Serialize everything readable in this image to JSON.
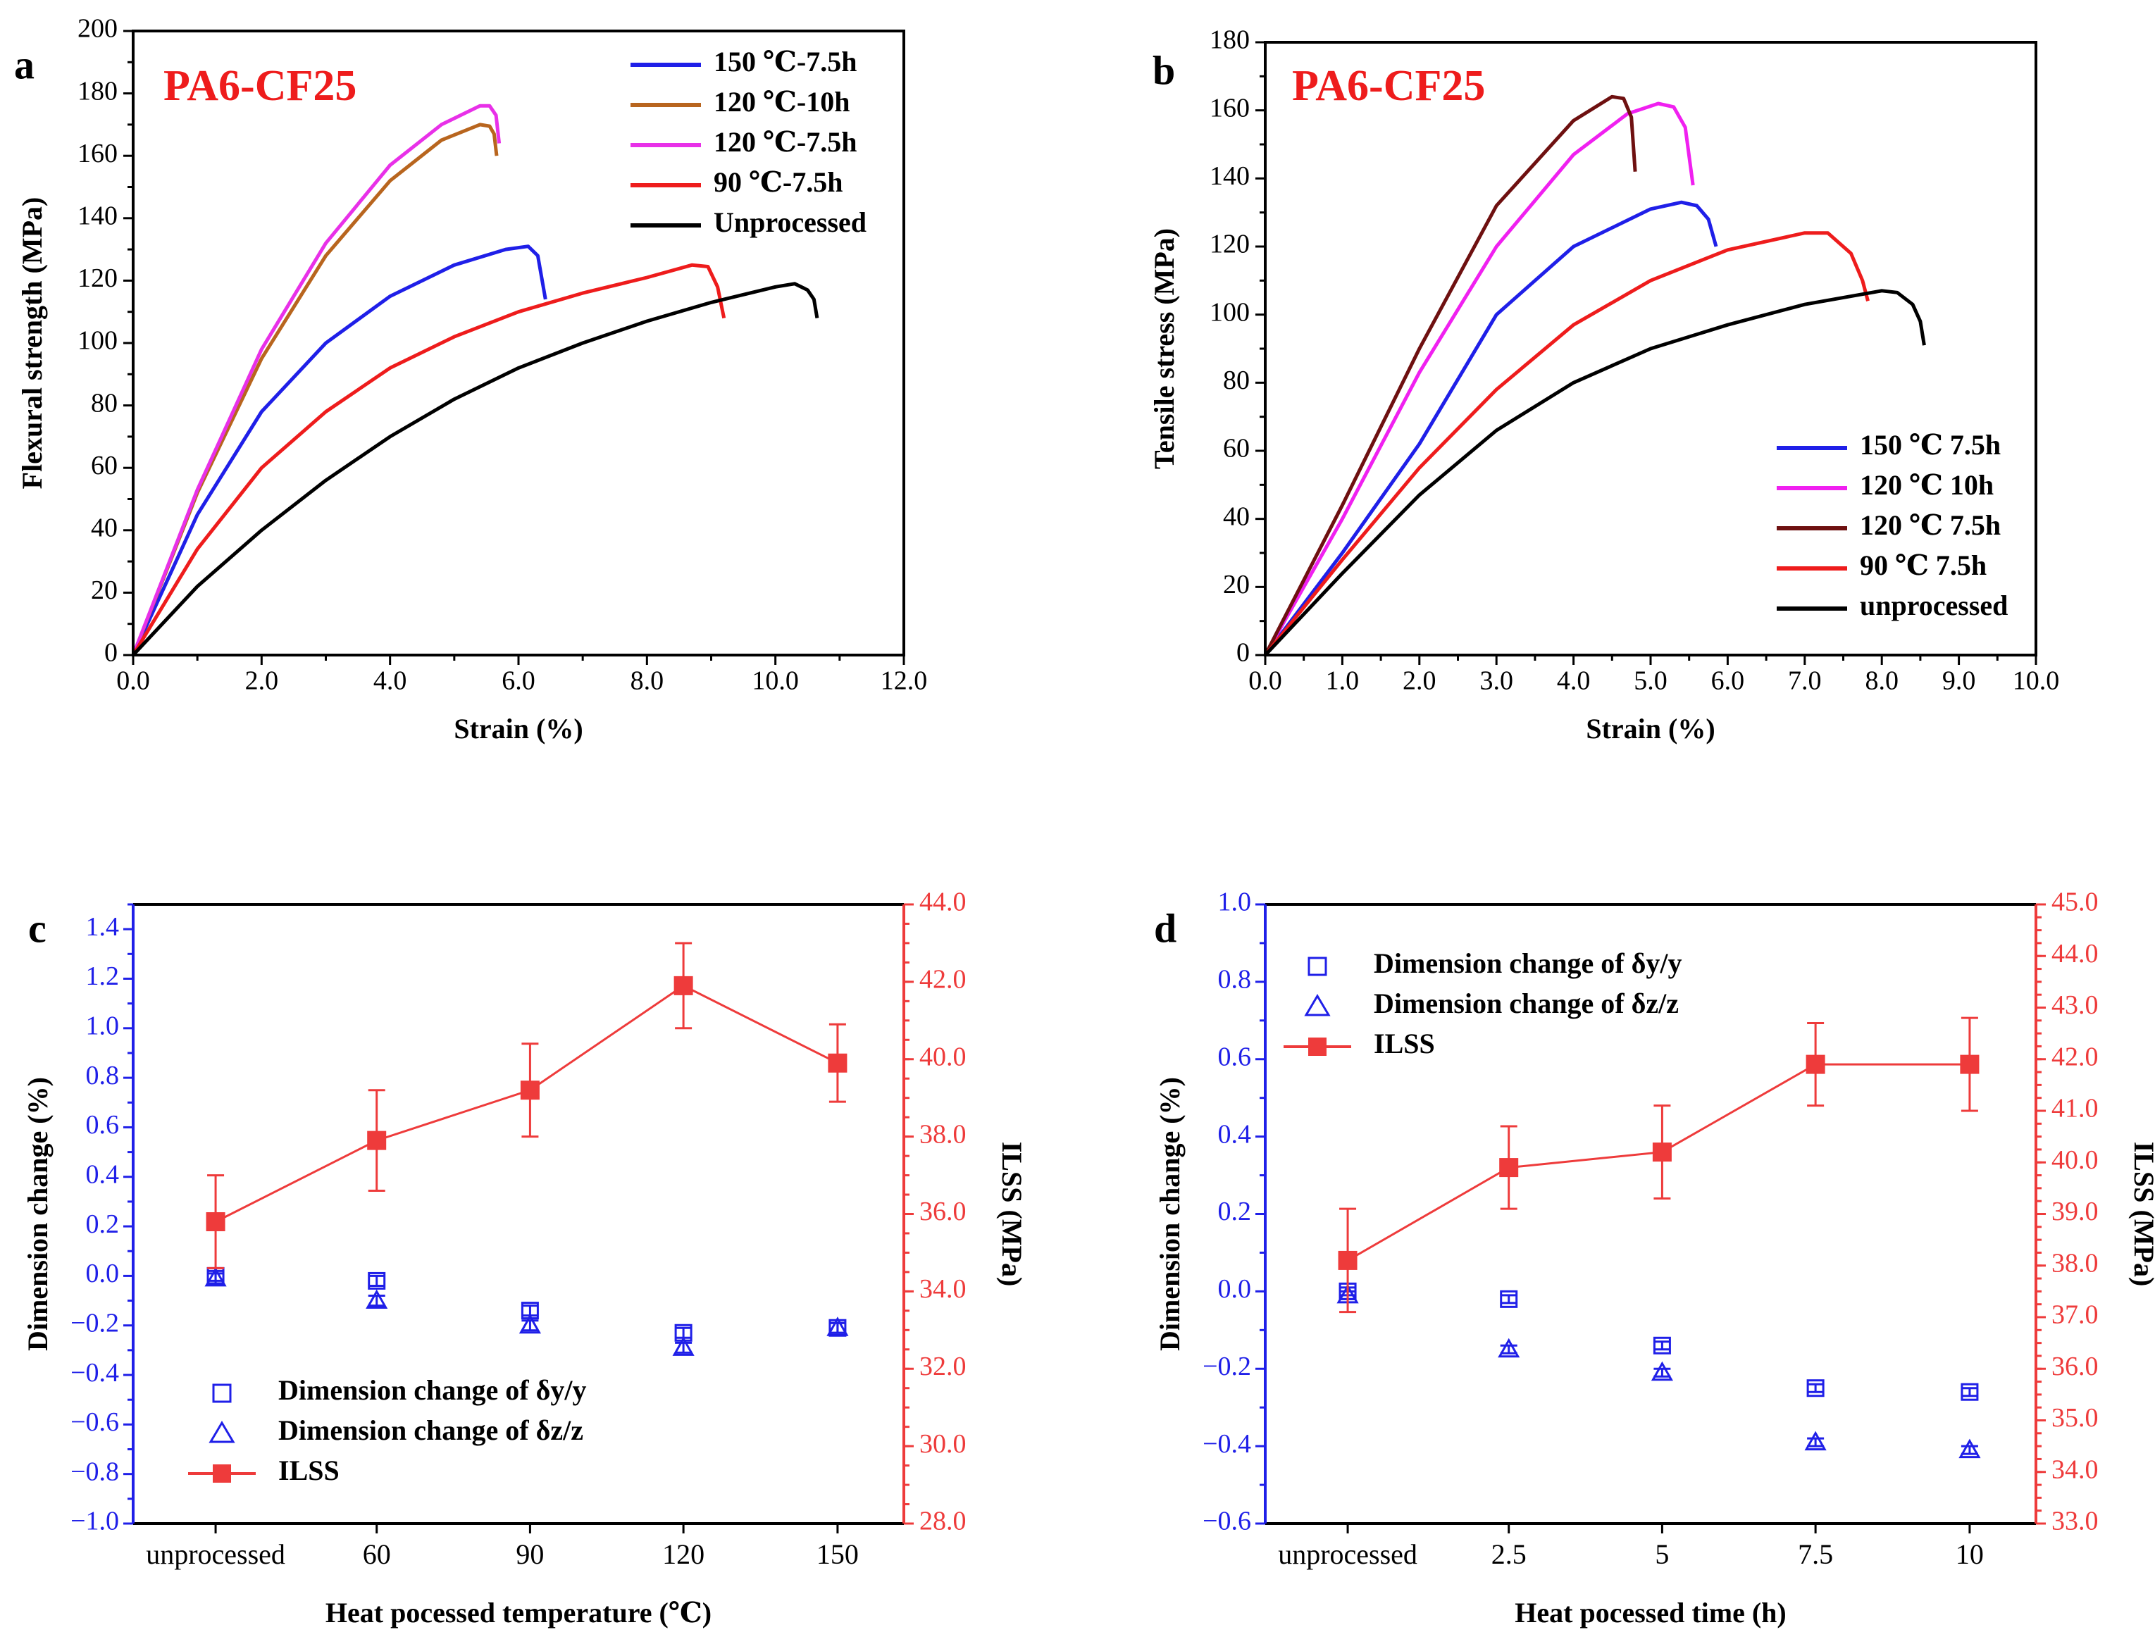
{
  "chart_data": [
    {
      "panel": "a",
      "type": "line",
      "title": "PA6-CF25",
      "xlabel": "Strain (%)",
      "ylabel": "Flexural strength (MPa)",
      "xlim": [
        0,
        12
      ],
      "ylim": [
        0,
        200
      ],
      "xticks": [
        "0.0",
        "2.0",
        "4.0",
        "6.0",
        "8.0",
        "10.0",
        "12.0"
      ],
      "yticks": [
        "0",
        "20",
        "40",
        "60",
        "80",
        "100",
        "120",
        "140",
        "160",
        "180",
        "200"
      ],
      "legend_position": "top-right",
      "series": [
        {
          "name": "150 ℃-7.5h",
          "color": "#1f1fe8",
          "points": [
            [
              0,
              0
            ],
            [
              1,
              45
            ],
            [
              2,
              78
            ],
            [
              3,
              100
            ],
            [
              4,
              115
            ],
            [
              5,
              125
            ],
            [
              5.8,
              130
            ],
            [
              6.15,
              131
            ],
            [
              6.3,
              128
            ],
            [
              6.42,
              114
            ]
          ]
        },
        {
          "name": "120 ℃-10h",
          "color": "#b8651e",
          "points": [
            [
              0,
              0
            ],
            [
              1,
              52
            ],
            [
              2,
              95
            ],
            [
              3,
              128
            ],
            [
              4,
              152
            ],
            [
              4.8,
              165
            ],
            [
              5.4,
              170
            ],
            [
              5.55,
              169.5
            ],
            [
              5.62,
              167
            ],
            [
              5.66,
              160
            ]
          ]
        },
        {
          "name": "120 ℃-7.5h",
          "color": "#e830e8",
          "points": [
            [
              0,
              0
            ],
            [
              1,
              53
            ],
            [
              2,
              98
            ],
            [
              3,
              132
            ],
            [
              4,
              157
            ],
            [
              4.8,
              170
            ],
            [
              5.4,
              176
            ],
            [
              5.55,
              176
            ],
            [
              5.65,
              173
            ],
            [
              5.7,
              164
            ]
          ]
        },
        {
          "name": "90 ℃-7.5h",
          "color": "#ee1c1c",
          "points": [
            [
              0,
              0
            ],
            [
              1,
              34
            ],
            [
              2,
              60
            ],
            [
              3,
              78
            ],
            [
              4,
              92
            ],
            [
              5,
              102
            ],
            [
              6,
              110
            ],
            [
              7,
              116
            ],
            [
              8,
              121
            ],
            [
              8.7,
              125
            ],
            [
              8.95,
              124.5
            ],
            [
              9.1,
              118
            ],
            [
              9.2,
              108
            ]
          ]
        },
        {
          "name": "Unprocessed",
          "color": "#000000",
          "points": [
            [
              0,
              0
            ],
            [
              1,
              22
            ],
            [
              2,
              40
            ],
            [
              3,
              56
            ],
            [
              4,
              70
            ],
            [
              5,
              82
            ],
            [
              6,
              92
            ],
            [
              7,
              100
            ],
            [
              8,
              107
            ],
            [
              9,
              113
            ],
            [
              10,
              118
            ],
            [
              10.3,
              119
            ],
            [
              10.5,
              117
            ],
            [
              10.6,
              114
            ],
            [
              10.65,
              108
            ]
          ]
        }
      ]
    },
    {
      "panel": "b",
      "type": "line",
      "title": "PA6-CF25",
      "xlabel": "Strain (%)",
      "ylabel": "Tensile stress (MPa)",
      "xlim": [
        0,
        10
      ],
      "ylim": [
        0,
        180
      ],
      "xticks": [
        "0.0",
        "1.0",
        "2.0",
        "3.0",
        "4.0",
        "5.0",
        "6.0",
        "7.0",
        "8.0",
        "9.0",
        "10.0"
      ],
      "yticks": [
        "0",
        "20",
        "40",
        "60",
        "80",
        "100",
        "120",
        "140",
        "160",
        "180"
      ],
      "legend_position": "bottom-right",
      "series": [
        {
          "name": "150 ℃ 7.5h",
          "color": "#1f1fe8",
          "points": [
            [
              0,
              0
            ],
            [
              1,
              30
            ],
            [
              2,
              62
            ],
            [
              3,
              100
            ],
            [
              4,
              120
            ],
            [
              5,
              131
            ],
            [
              5.4,
              133
            ],
            [
              5.6,
              132
            ],
            [
              5.75,
              128
            ],
            [
              5.85,
              120
            ]
          ]
        },
        {
          "name": "120 ℃ 10h",
          "color": "#f020f0",
          "points": [
            [
              0,
              0
            ],
            [
              1,
              40
            ],
            [
              2,
              83
            ],
            [
              3,
              120
            ],
            [
              4,
              147
            ],
            [
              4.7,
              159
            ],
            [
              5.1,
              162
            ],
            [
              5.3,
              161
            ],
            [
              5.45,
              155
            ],
            [
              5.55,
              138
            ]
          ]
        },
        {
          "name": "120 ℃ 7.5h",
          "color": "#6e1010",
          "points": [
            [
              0,
              0
            ],
            [
              1,
              44
            ],
            [
              2,
              90
            ],
            [
              3,
              132
            ],
            [
              4,
              157
            ],
            [
              4.5,
              164
            ],
            [
              4.65,
              163.5
            ],
            [
              4.75,
              158
            ],
            [
              4.8,
              142
            ]
          ]
        },
        {
          "name": "90 ℃ 7.5h",
          "color": "#ee1c1c",
          "points": [
            [
              0,
              0
            ],
            [
              1,
              28
            ],
            [
              2,
              55
            ],
            [
              3,
              78
            ],
            [
              4,
              97
            ],
            [
              5,
              110
            ],
            [
              6,
              119
            ],
            [
              7,
              124
            ],
            [
              7.3,
              124
            ],
            [
              7.6,
              118
            ],
            [
              7.75,
              110
            ],
            [
              7.82,
              104
            ]
          ]
        },
        {
          "name": "unprocessed",
          "color": "#000000",
          "points": [
            [
              0,
              0
            ],
            [
              1,
              24
            ],
            [
              2,
              47
            ],
            [
              3,
              66
            ],
            [
              4,
              80
            ],
            [
              5,
              90
            ],
            [
              6,
              97
            ],
            [
              7,
              103
            ],
            [
              8,
              107
            ],
            [
              8.2,
              106.5
            ],
            [
              8.4,
              103
            ],
            [
              8.5,
              98
            ],
            [
              8.55,
              91
            ]
          ]
        }
      ]
    },
    {
      "panel": "c",
      "type": "scatter",
      "xlabel": "Heat pocessed temperature (℃)",
      "ylabel": "Dimension change (%)",
      "ylabel_right": "ILSS (MPa)",
      "categories": [
        "unprocessed",
        "60",
        "90",
        "120",
        "150"
      ],
      "ylim": [
        -1.0,
        1.5
      ],
      "yticks": [
        "−1.0",
        "−0.8",
        "−0.6",
        "−0.4",
        "−0.2",
        "0.0",
        "0.2",
        "0.4",
        "0.6",
        "0.8",
        "1.0",
        "1.2",
        "1.4"
      ],
      "ylim_right": [
        28,
        44
      ],
      "yticks_right": [
        "28.0",
        "30.0",
        "32.0",
        "34.0",
        "36.0",
        "38.0",
        "40.0",
        "42.0",
        "44.0"
      ],
      "legend_position": "bottom-left",
      "series": [
        {
          "name": "Dimension change of δy/y",
          "marker": "open-square",
          "color": "#1f1fe8",
          "axis": "left",
          "values": [
            0.0,
            -0.02,
            -0.14,
            -0.23,
            -0.21
          ],
          "errors": [
            0.02,
            0.02,
            0.02,
            0.02,
            0.02
          ]
        },
        {
          "name": "Dimension change of δz/z",
          "marker": "open-triangle",
          "color": "#1f1fe8",
          "axis": "left",
          "values": [
            -0.01,
            -0.1,
            -0.2,
            -0.29,
            -0.21
          ],
          "errors": [
            0.02,
            0.02,
            0.02,
            0.02,
            0.02
          ]
        },
        {
          "name": "ILSS",
          "marker": "filled-square-line",
          "color": "#ee3b3b",
          "axis": "right",
          "values": [
            35.8,
            37.9,
            39.2,
            41.9,
            39.9
          ],
          "errors": [
            1.2,
            1.3,
            1.2,
            1.1,
            1.0
          ]
        }
      ]
    },
    {
      "panel": "d",
      "type": "scatter",
      "xlabel": "Heat pocessed time (h)",
      "ylabel": "Dimension change (%)",
      "ylabel_right": "ILSS (MPa)",
      "categories": [
        "unprocessed",
        "2.5",
        "5",
        "7.5",
        "10"
      ],
      "ylim": [
        -0.6,
        1.0
      ],
      "yticks": [
        "−0.6",
        "−0.4",
        "−0.2",
        "0.0",
        "0.2",
        "0.4",
        "0.6",
        "0.8",
        "1.0"
      ],
      "ylim_right": [
        33,
        45
      ],
      "yticks_right": [
        "33.0",
        "34.0",
        "35.0",
        "36.0",
        "37.0",
        "38.0",
        "39.0",
        "40.0",
        "41.0",
        "42.0",
        "43.0",
        "44.0",
        "45.0"
      ],
      "legend_position": "top-left",
      "series": [
        {
          "name": "Dimension change of δy/y",
          "marker": "open-square",
          "color": "#1f1fe8",
          "axis": "left",
          "values": [
            0.0,
            -0.02,
            -0.14,
            -0.25,
            -0.26
          ],
          "errors": [
            0.01,
            0.01,
            0.01,
            0.01,
            0.01
          ]
        },
        {
          "name": "Dimension change of δz/z",
          "marker": "open-triangle",
          "color": "#1f1fe8",
          "axis": "left",
          "values": [
            -0.01,
            -0.15,
            -0.21,
            -0.39,
            -0.41
          ],
          "errors": [
            0.01,
            0.01,
            0.01,
            0.01,
            0.01
          ]
        },
        {
          "name": "ILSS",
          "marker": "filled-square-line",
          "color": "#ee3b3b",
          "axis": "right",
          "values": [
            38.1,
            39.9,
            40.2,
            41.9,
            41.9
          ],
          "errors": [
            1.0,
            0.8,
            0.9,
            0.8,
            0.9
          ]
        }
      ]
    }
  ]
}
